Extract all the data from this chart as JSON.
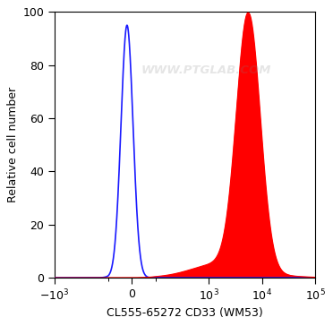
{
  "xlabel": "CL555-65272 CD33 (WM53)",
  "ylabel": "Relative cell number",
  "ylim": [
    0,
    100
  ],
  "yticks": [
    0,
    20,
    40,
    60,
    80,
    100
  ],
  "background_color": "#ffffff",
  "plot_bg_color": "#ffffff",
  "blue_color": "#1a1aff",
  "red_color": "#ff0000",
  "red_fill_color": "#ff0000",
  "watermark_text": "WWW.PTGLAB.COM",
  "watermark_alpha": 0.2,
  "x_neg_limit": -1000,
  "x_pos_limit": 100000,
  "linthresh": 100,
  "linscale": 0.4
}
